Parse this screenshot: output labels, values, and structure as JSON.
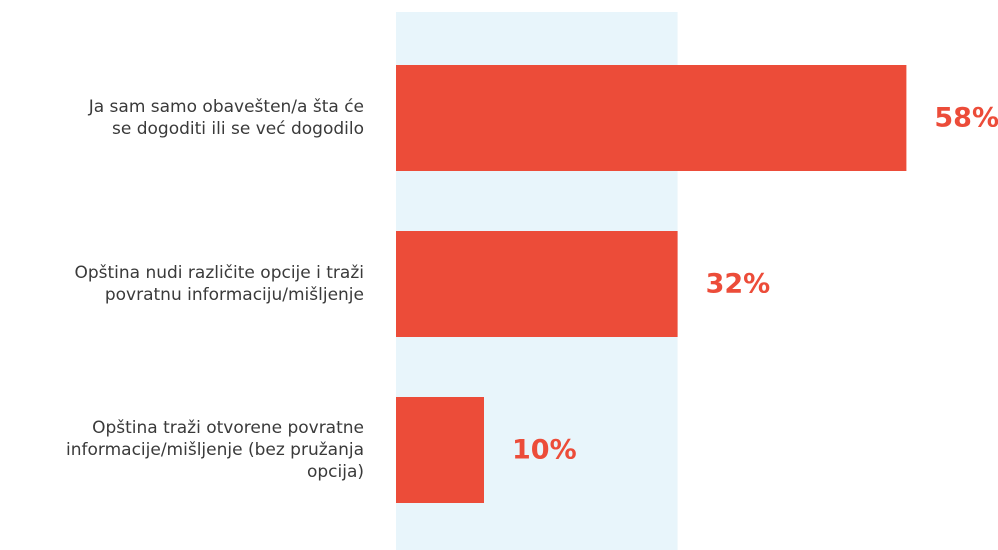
{
  "chart_data": {
    "type": "bar",
    "orientation": "horizontal",
    "title": "",
    "xlabel": "",
    "ylabel": "",
    "xlim": [
      0,
      100
    ],
    "grid": false,
    "legend": "none",
    "categories": [
      [
        "Ja sam samo obavešten/a šta će",
        "se dogoditi ili se već dogodilo"
      ],
      [
        "Opština nudi različite opcije i traži",
        "povratnu informaciju/mišljenje"
      ],
      [
        "Opština traži otvorene povratne",
        "informacije/mišljenje (bez pružanja",
        "opcija)"
      ]
    ],
    "values": [
      58,
      32,
      10
    ],
    "value_labels": [
      "58%",
      "32%",
      "10%"
    ],
    "highlight_band": [
      0,
      32
    ],
    "colors": {
      "bar": "#ec4c39",
      "value_label": "#ec4c39",
      "band": "#e8f5fb",
      "category_text": "#3a3a3a"
    }
  }
}
